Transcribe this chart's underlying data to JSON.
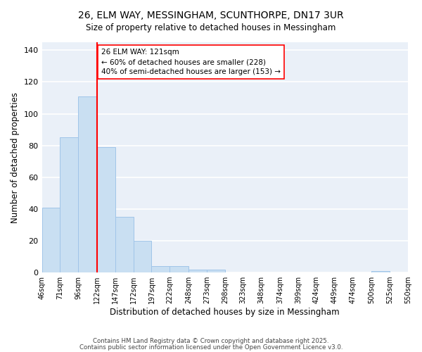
{
  "title": "26, ELM WAY, MESSINGHAM, SCUNTHORPE, DN17 3UR",
  "subtitle": "Size of property relative to detached houses in Messingham",
  "xlabel": "Distribution of detached houses by size in Messingham",
  "ylabel": "Number of detached properties",
  "bar_edges": [
    46,
    71,
    96,
    122,
    147,
    172,
    197,
    222,
    248,
    273,
    298,
    323,
    348,
    374,
    399,
    424,
    449,
    474,
    500,
    525,
    550
  ],
  "bar_heights": [
    41,
    85,
    111,
    79,
    35,
    20,
    4,
    4,
    2,
    2,
    0,
    0,
    0,
    0,
    0,
    0,
    0,
    0,
    1,
    0
  ],
  "bar_color": "#c9dff2",
  "bar_edge_color": "#a0c4e8",
  "redline_x": 122,
  "annotation_title": "26 ELM WAY: 121sqm",
  "annotation_line1": "← 60% of detached houses are smaller (228)",
  "annotation_line2": "40% of semi-detached houses are larger (153) →",
  "ylim": [
    0,
    145
  ],
  "xlim": [
    46,
    550
  ],
  "tick_labels": [
    "46sqm",
    "71sqm",
    "96sqm",
    "122sqm",
    "147sqm",
    "172sqm",
    "197sqm",
    "222sqm",
    "248sqm",
    "273sqm",
    "298sqm",
    "323sqm",
    "348sqm",
    "374sqm",
    "399sqm",
    "424sqm",
    "449sqm",
    "474sqm",
    "500sqm",
    "525sqm",
    "550sqm"
  ],
  "yticks": [
    0,
    20,
    40,
    60,
    80,
    100,
    120,
    140
  ],
  "footer_line1": "Contains HM Land Registry data © Crown copyright and database right 2025.",
  "footer_line2": "Contains public sector information licensed under the Open Government Licence v3.0.",
  "background_color": "#ffffff",
  "plot_bg_color": "#eaf0f8"
}
